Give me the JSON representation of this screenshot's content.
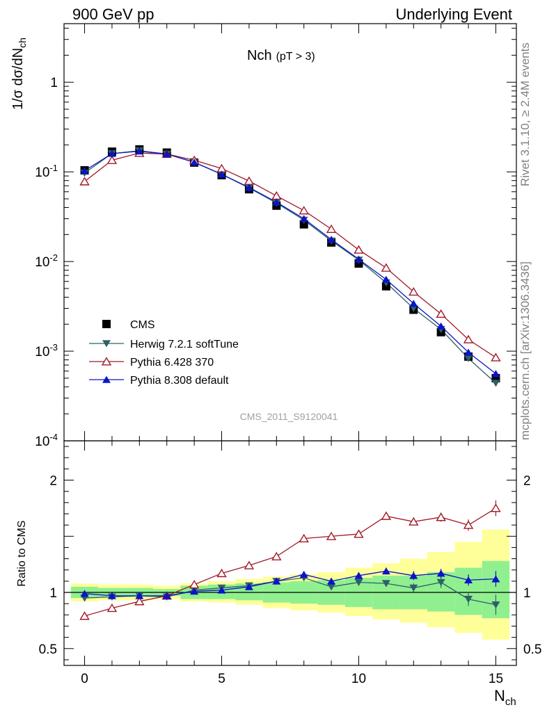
{
  "header": {
    "left": "900 GeV pp",
    "right": "Underlying Event"
  },
  "side_labels": {
    "rivet": "Rivet 3.1.10, ≥ 2.4M events",
    "mcplots": "mcplots.cern.ch [arXiv:1306.3436]"
  },
  "chart_data": [
    {
      "type": "scatter",
      "title": "Nch",
      "title_sub": "(pT > 3)",
      "ylabel": "1/σ dσ/dN",
      "ylabel_sub": "ch",
      "yscale": "log",
      "ylim": [
        0.0001,
        4.5
      ],
      "xlim": [
        -0.75,
        15.75
      ],
      "yticks": [
        {
          "base": "10",
          "exp": "-4",
          "value": 0.0001
        },
        {
          "base": "10",
          "exp": "-3",
          "value": 0.001
        },
        {
          "base": "10",
          "exp": "-2",
          "value": 0.01
        },
        {
          "base": "10",
          "exp": "-1",
          "value": 0.1
        },
        {
          "base": "1",
          "exp": "",
          "value": 1
        }
      ],
      "watermark": "CMS_2011_S9120041",
      "legend_position": "lower-left",
      "x": [
        0,
        1,
        2,
        3,
        4,
        5,
        6,
        7,
        8,
        9,
        10,
        11,
        12,
        13,
        14,
        15
      ],
      "series": [
        {
          "name": "CMS",
          "color": "#000000",
          "marker": "square",
          "values": [
            0.104,
            0.168,
            0.178,
            0.164,
            0.127,
            0.092,
            0.064,
            0.042,
            0.026,
            0.0163,
            0.0095,
            0.0053,
            0.0029,
            0.00163,
            0.00087,
            0.0005
          ]
        },
        {
          "name": "Herwig 7.2.1 softTune",
          "color": "#2e6068",
          "marker": "triangle-down",
          "values": [
            0.097,
            0.16,
            0.172,
            0.158,
            0.128,
            0.094,
            0.066,
            0.045,
            0.029,
            0.017,
            0.0104,
            0.0058,
            0.003,
            0.00175,
            0.00083,
            0.00044
          ]
        },
        {
          "name": "Pythia 6.428 370",
          "color": "#a01828",
          "marker": "triangle-up-open",
          "values": [
            0.078,
            0.135,
            0.162,
            0.158,
            0.135,
            0.109,
            0.079,
            0.054,
            0.037,
            0.023,
            0.0135,
            0.0085,
            0.0046,
            0.0026,
            0.00135,
            0.00085
          ]
        },
        {
          "name": "Pythia 8.308 default",
          "color": "#0a14c8",
          "marker": "triangle-up",
          "values": [
            0.103,
            0.16,
            0.17,
            0.158,
            0.128,
            0.094,
            0.067,
            0.046,
            0.03,
            0.0176,
            0.0106,
            0.0063,
            0.0034,
            0.0019,
            0.00097,
            0.00056
          ]
        }
      ]
    },
    {
      "type": "scatter",
      "ylabel": "Ratio to CMS",
      "ylim": [
        0.35,
        2.35
      ],
      "xlim": [
        -0.75,
        15.75
      ],
      "xlabel": "N",
      "xlabel_sub": "ch",
      "xticks": [
        0,
        5,
        10,
        15
      ],
      "yticks": [
        0.5,
        1,
        2
      ],
      "x": [
        0,
        1,
        2,
        3,
        4,
        5,
        6,
        7,
        8,
        9,
        10,
        11,
        12,
        13,
        14,
        15
      ],
      "band_inner": {
        "color": "#90f090",
        "lo": [
          0.95,
          0.96,
          0.96,
          0.97,
          0.94,
          0.94,
          0.93,
          0.91,
          0.9,
          0.89,
          0.87,
          0.85,
          0.85,
          0.83,
          0.8,
          0.77
        ],
        "hi": [
          1.05,
          1.04,
          1.04,
          1.03,
          1.06,
          1.07,
          1.08,
          1.09,
          1.1,
          1.11,
          1.13,
          1.15,
          1.15,
          1.18,
          1.22,
          1.28
        ]
      },
      "band_outer": {
        "color": "#ffff99",
        "lo": [
          0.92,
          0.93,
          0.93,
          0.94,
          0.92,
          0.91,
          0.89,
          0.86,
          0.84,
          0.82,
          0.79,
          0.76,
          0.73,
          0.69,
          0.64,
          0.58
        ],
        "hi": [
          1.08,
          1.07,
          1.07,
          1.06,
          1.08,
          1.1,
          1.12,
          1.14,
          1.16,
          1.18,
          1.22,
          1.26,
          1.3,
          1.36,
          1.45,
          1.56
        ]
      },
      "series": [
        {
          "name": "Herwig 7.2.1 softTune",
          "color": "#2e6068",
          "marker": "triangle-down",
          "values": [
            0.95,
            0.96,
            0.97,
            0.96,
            1.02,
            1.04,
            1.06,
            1.1,
            1.13,
            1.05,
            1.09,
            1.08,
            1.04,
            1.09,
            0.94,
            0.89
          ],
          "err": [
            0.02,
            0.02,
            0.02,
            0.02,
            0.02,
            0.02,
            0.02,
            0.02,
            0.02,
            0.03,
            0.03,
            0.03,
            0.04,
            0.05,
            0.06,
            0.09
          ]
        },
        {
          "name": "Pythia 6.428 370",
          "color": "#a01828",
          "marker": "triangle-up-open",
          "values": [
            0.79,
            0.86,
            0.92,
            0.97,
            1.07,
            1.17,
            1.24,
            1.32,
            1.48,
            1.5,
            1.52,
            1.68,
            1.63,
            1.67,
            1.6,
            1.75
          ],
          "err": [
            0.01,
            0.01,
            0.01,
            0.01,
            0.01,
            0.01,
            0.01,
            0.02,
            0.02,
            0.02,
            0.03,
            0.03,
            0.03,
            0.04,
            0.05,
            0.07
          ]
        },
        {
          "name": "Pythia 8.308 default",
          "color": "#0a14c8",
          "marker": "triangle-up",
          "values": [
            0.99,
            0.97,
            0.97,
            0.97,
            1.01,
            1.02,
            1.05,
            1.1,
            1.16,
            1.1,
            1.15,
            1.19,
            1.15,
            1.17,
            1.11,
            1.12
          ],
          "err": [
            0.01,
            0.01,
            0.01,
            0.01,
            0.01,
            0.01,
            0.01,
            0.02,
            0.02,
            0.02,
            0.02,
            0.03,
            0.04,
            0.04,
            0.05,
            0.07
          ]
        }
      ]
    }
  ]
}
